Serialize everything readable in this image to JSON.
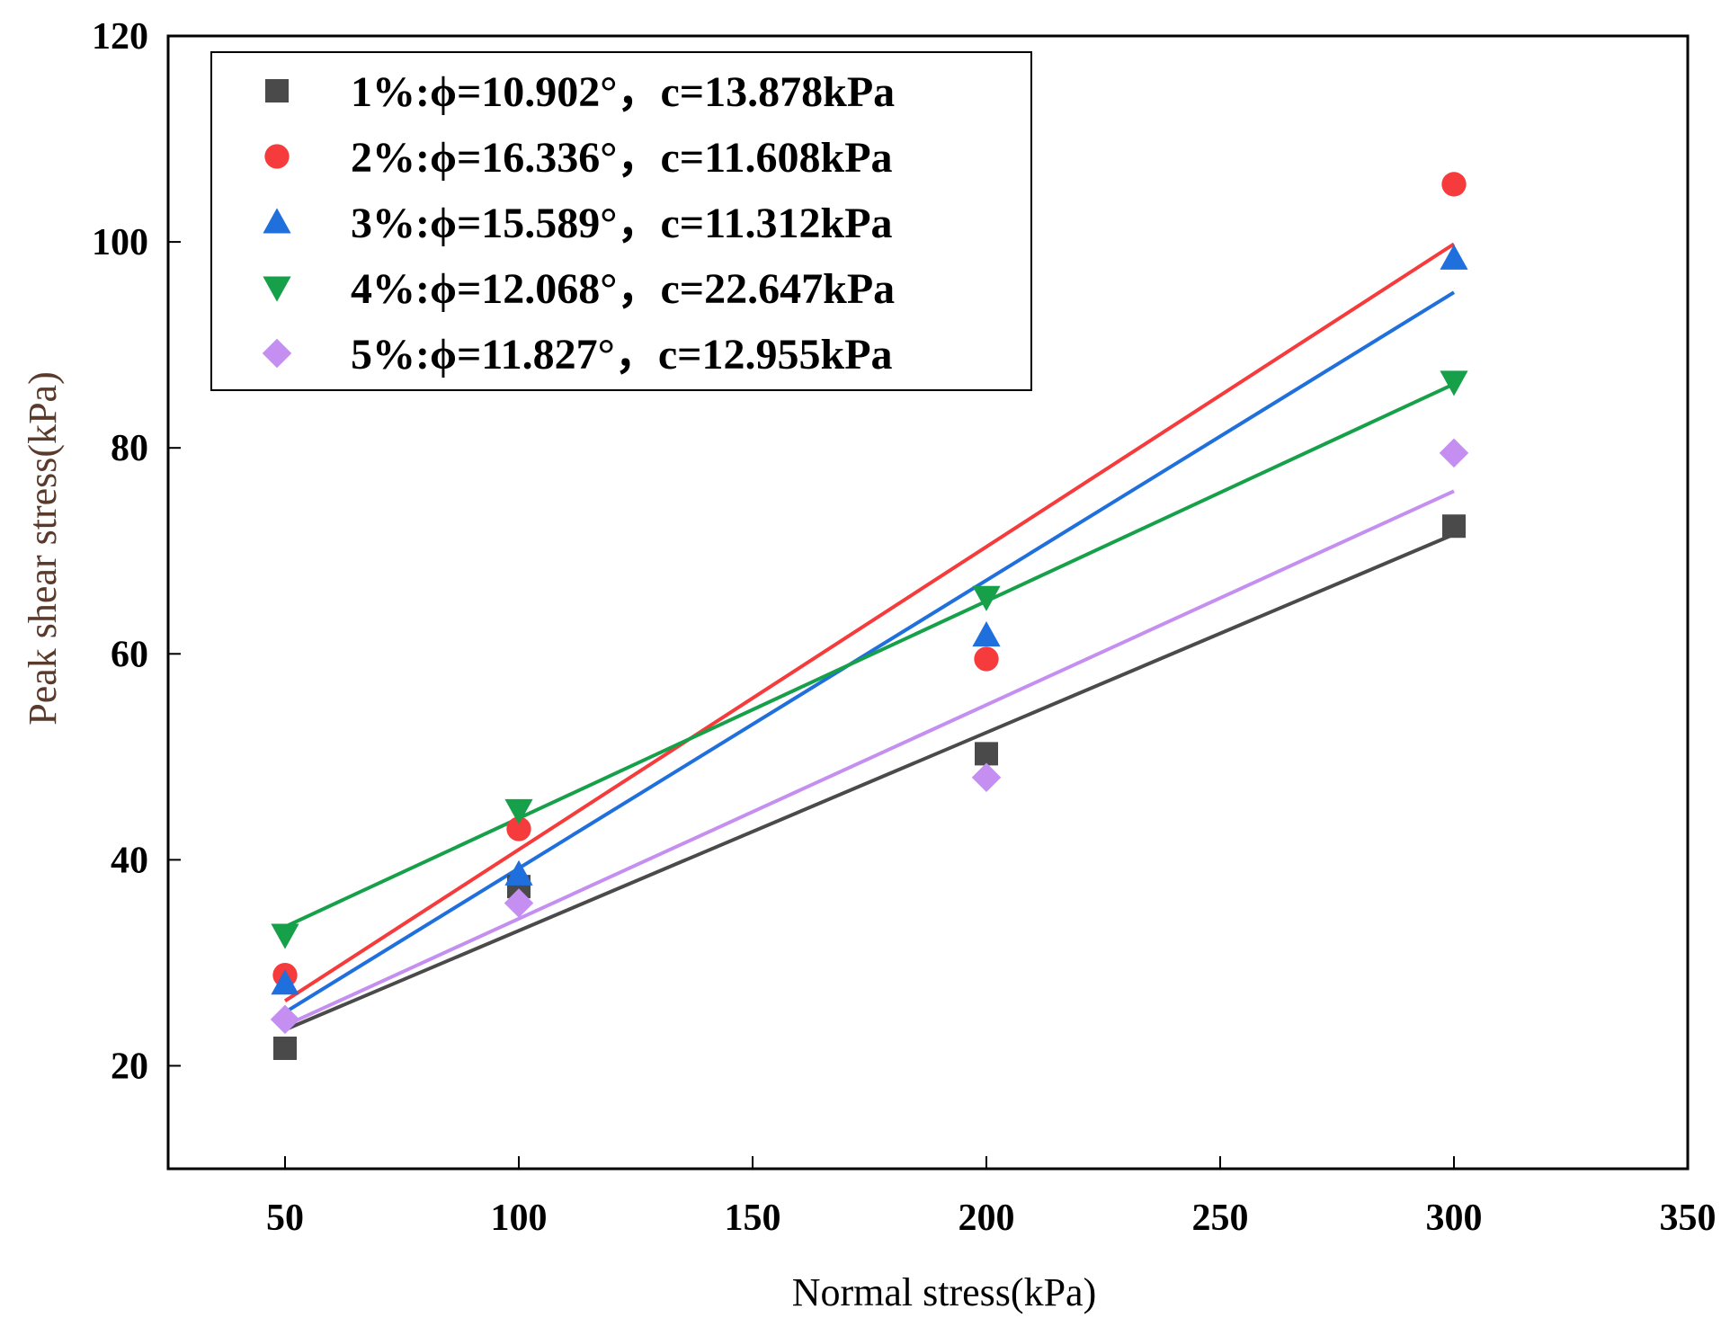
{
  "chart_data": {
    "type": "scatter",
    "title": "",
    "xlabel": "Normal stress(kPa)",
    "ylabel": "Peak shear stress(kPa)",
    "xlim": [
      25,
      350
    ],
    "ylim": [
      10,
      120
    ],
    "x_ticks": [
      "50",
      "100",
      "150",
      "200",
      "250",
      "300",
      "350"
    ],
    "y_ticks": [
      "20",
      "40",
      "60",
      "80",
      "100",
      "120"
    ],
    "grid": false,
    "legend_position": "top-left",
    "x": [
      50,
      100,
      200,
      300
    ],
    "series": [
      {
        "name": "1%:ϕ=10.902°，c=13.878kPa",
        "marker": "square",
        "color": "#4a4a4a",
        "values": [
          21.7,
          37.4,
          50.3,
          72.4
        ],
        "fit": {
          "from": [
            50,
            23.5
          ],
          "to": [
            300,
            71.6
          ]
        }
      },
      {
        "name": "2%:ϕ=16.336°，c=11.608kPa",
        "marker": "circle",
        "color": "#f53b3b",
        "values": [
          28.8,
          43.0,
          59.5,
          105.6
        ],
        "fit": {
          "from": [
            50,
            26.3
          ],
          "to": [
            300,
            99.8
          ]
        }
      },
      {
        "name": "3%:ϕ=15.589°，c=11.312kPa",
        "marker": "triangle-up",
        "color": "#1f6fdc",
        "values": [
          28.0,
          38.6,
          61.8,
          98.4
        ],
        "fit": {
          "from": [
            50,
            25.2
          ],
          "to": [
            300,
            95.1
          ]
        }
      },
      {
        "name": "4%:ϕ=12.068°，c=22.647kPa",
        "marker": "triangle-down",
        "color": "#17a04a",
        "values": [
          32.7,
          44.8,
          65.5,
          86.4
        ],
        "fit": {
          "from": [
            50,
            33.5
          ],
          "to": [
            300,
            86.2
          ]
        }
      },
      {
        "name": "5%:ϕ=11.827°，c=12.955kPa",
        "marker": "diamond",
        "color": "#c48ff0",
        "values": [
          24.5,
          35.8,
          48.0,
          79.5
        ],
        "fit": {
          "from": [
            50,
            23.9
          ],
          "to": [
            300,
            75.8
          ]
        }
      }
    ]
  }
}
